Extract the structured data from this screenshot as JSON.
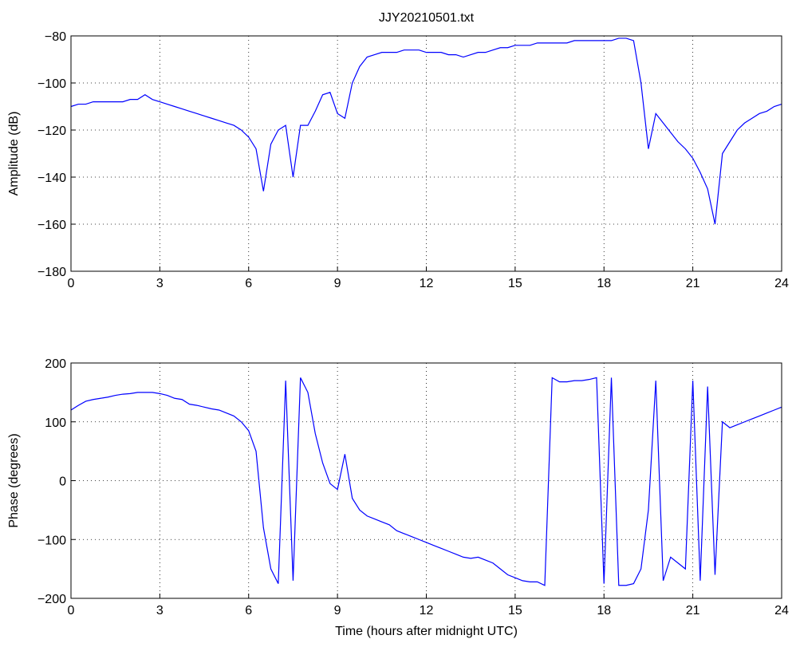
{
  "chart_data": [
    {
      "type": "line",
      "title": "JJY20210501.txt",
      "ylabel": "Amplitude (dB)",
      "xlim": [
        0,
        24
      ],
      "xticks": [
        0,
        3,
        6,
        9,
        12,
        15,
        18,
        21,
        24
      ],
      "ylim": [
        -180,
        -80
      ],
      "yticks": [
        {
          "value": -180,
          "label": "−180"
        },
        {
          "value": -160,
          "label": "−160"
        },
        {
          "value": -140,
          "label": "−140"
        },
        {
          "value": -120,
          "label": "−120"
        },
        {
          "value": -100,
          "label": "−100"
        },
        {
          "value": -80,
          "label": "−80"
        }
      ],
      "grid": true,
      "x": [
        0,
        0.25,
        0.5,
        0.75,
        1,
        1.25,
        1.5,
        1.75,
        2,
        2.25,
        2.5,
        2.75,
        3,
        3.25,
        3.5,
        3.75,
        4,
        4.25,
        4.5,
        4.75,
        5,
        5.25,
        5.5,
        5.75,
        6,
        6.25,
        6.5,
        6.75,
        7,
        7.25,
        7.5,
        7.75,
        8,
        8.25,
        8.5,
        8.75,
        9,
        9.25,
        9.5,
        9.75,
        10,
        10.25,
        10.5,
        10.75,
        11,
        11.25,
        11.5,
        11.75,
        12,
        12.25,
        12.5,
        12.75,
        13,
        13.25,
        13.5,
        13.75,
        14,
        14.25,
        14.5,
        14.75,
        15,
        15.25,
        15.5,
        15.75,
        16,
        16.25,
        16.5,
        16.75,
        17,
        17.25,
        17.5,
        17.75,
        18,
        18.25,
        18.5,
        18.75,
        19,
        19.25,
        19.5,
        19.75,
        20,
        20.25,
        20.5,
        20.75,
        21,
        21.25,
        21.5,
        21.75,
        22,
        22.25,
        22.5,
        22.75,
        23,
        23.25,
        23.5,
        23.75,
        24
      ],
      "series": [
        {
          "color": "#0000ff",
          "values": [
            -110,
            -109,
            -109,
            -108,
            -108,
            -108,
            -108,
            -108,
            -107,
            -107,
            -105,
            -107,
            -108,
            -109,
            -110,
            -111,
            -112,
            -113,
            -114,
            -115,
            -116,
            -117,
            -118,
            -120,
            -123,
            -128,
            -146,
            -126,
            -120,
            -118,
            -140,
            -118,
            -118,
            -112,
            -105,
            -104,
            -113,
            -115,
            -100,
            -93,
            -89,
            -88,
            -87,
            -87,
            -87,
            -86,
            -86,
            -86,
            -87,
            -87,
            -87,
            -88,
            -88,
            -89,
            -88,
            -87,
            -87,
            -86,
            -85,
            -85,
            -84,
            -84,
            -84,
            -83,
            -83,
            -83,
            -83,
            -83,
            -82,
            -82,
            -82,
            -82,
            -82,
            -82,
            -81,
            -81,
            -82,
            -100,
            -128,
            -113,
            -117,
            -121,
            -125,
            -128,
            -132,
            -138,
            -145,
            -160,
            -130,
            -125,
            -120,
            -117,
            -115,
            -113,
            -112,
            -110,
            -109
          ]
        }
      ]
    },
    {
      "type": "line",
      "ylabel": "Phase (degrees)",
      "xlabel": "Time (hours after midnight UTC)",
      "xlim": [
        0,
        24
      ],
      "xticks": [
        0,
        3,
        6,
        9,
        12,
        15,
        18,
        21,
        24
      ],
      "ylim": [
        -200,
        200
      ],
      "yticks": [
        {
          "value": -200,
          "label": "−200"
        },
        {
          "value": -100,
          "label": "−100"
        },
        0,
        100,
        200
      ],
      "grid": true,
      "x": [
        0,
        0.25,
        0.5,
        0.75,
        1,
        1.25,
        1.5,
        1.75,
        2,
        2.25,
        2.5,
        2.75,
        3,
        3.25,
        3.5,
        3.75,
        4,
        4.25,
        4.5,
        4.75,
        5,
        5.25,
        5.5,
        5.75,
        6,
        6.25,
        6.5,
        6.75,
        7,
        7.25,
        7.5,
        7.75,
        8,
        8.25,
        8.5,
        8.75,
        9,
        9.25,
        9.5,
        9.75,
        10,
        10.25,
        10.5,
        10.75,
        11,
        11.25,
        11.5,
        11.75,
        12,
        12.25,
        12.5,
        12.75,
        13,
        13.25,
        13.5,
        13.75,
        14,
        14.25,
        14.5,
        14.75,
        15,
        15.25,
        15.5,
        15.75,
        16,
        16.25,
        16.5,
        16.75,
        17,
        17.25,
        17.5,
        17.75,
        18,
        18.25,
        18.5,
        18.75,
        19,
        19.25,
        19.5,
        19.75,
        20,
        20.25,
        20.5,
        20.75,
        21,
        21.25,
        21.5,
        21.75,
        22,
        22.25,
        22.5,
        22.75,
        23,
        23.25,
        23.5,
        23.75,
        24
      ],
      "series": [
        {
          "color": "#0000ff",
          "values": [
            120,
            128,
            135,
            138,
            140,
            142,
            145,
            147,
            148,
            150,
            150,
            150,
            148,
            145,
            140,
            138,
            130,
            128,
            125,
            122,
            120,
            115,
            110,
            100,
            85,
            50,
            -80,
            -150,
            -175,
            170,
            -170,
            175,
            150,
            80,
            30,
            -5,
            -15,
            45,
            -30,
            -50,
            -60,
            -65,
            -70,
            -75,
            -85,
            -90,
            -95,
            -100,
            -105,
            -110,
            -115,
            -120,
            -125,
            -130,
            -132,
            -130,
            -135,
            -140,
            -150,
            -160,
            -165,
            -170,
            -172,
            -172,
            -178,
            175,
            168,
            168,
            170,
            170,
            172,
            175,
            -175,
            175,
            -178,
            -178,
            -175,
            -150,
            -50,
            170,
            -170,
            -130,
            -140,
            -150,
            170,
            -170,
            160,
            -160,
            100,
            90,
            95,
            100,
            105,
            110,
            115,
            120,
            125
          ]
        }
      ]
    }
  ]
}
